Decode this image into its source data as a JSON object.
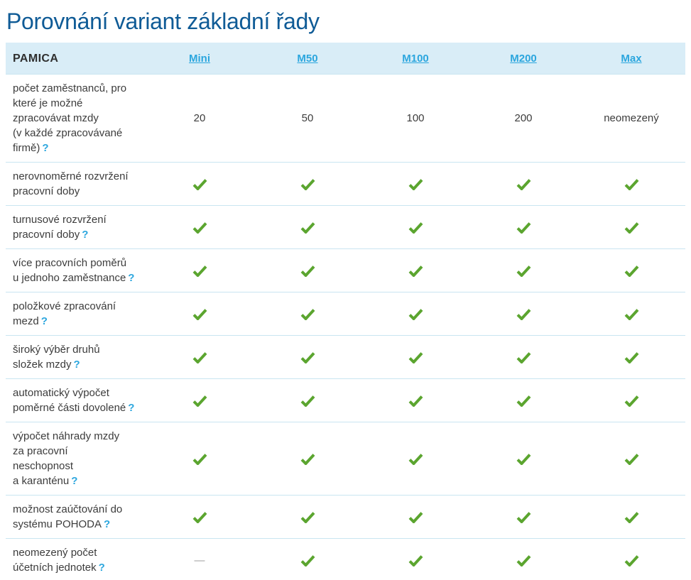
{
  "page": {
    "title": "Porovnání variant základní řady"
  },
  "table": {
    "product": "PAMICA",
    "columns": [
      "Mini",
      "M50",
      "M100",
      "M200",
      "Max"
    ],
    "help_symbol": "?",
    "dash_symbol": "—",
    "rows": [
      {
        "label": "počet zaměstnanců, pro\nkteré je možné\nzpracovávat mzdy\n(v každé zpracovávané\nfirmě)",
        "help": true,
        "values": [
          "20",
          "50",
          "100",
          "200",
          "neomezený"
        ]
      },
      {
        "label": "nerovnoměrné rozvržení\npracovní doby",
        "help": false,
        "values": [
          "check",
          "check",
          "check",
          "check",
          "check"
        ]
      },
      {
        "label": "turnusové rozvržení\npracovní doby",
        "help": true,
        "values": [
          "check",
          "check",
          "check",
          "check",
          "check"
        ]
      },
      {
        "label": "více pracovních poměrů\nu jednoho zaměstnance",
        "help": true,
        "values": [
          "check",
          "check",
          "check",
          "check",
          "check"
        ]
      },
      {
        "label": "položkové zpracování\nmezd",
        "help": true,
        "values": [
          "check",
          "check",
          "check",
          "check",
          "check"
        ]
      },
      {
        "label": "široký výběr druhů\nsložek mzdy",
        "help": true,
        "values": [
          "check",
          "check",
          "check",
          "check",
          "check"
        ]
      },
      {
        "label": "automatický výpočet\npoměrné části dovolené",
        "help": true,
        "values": [
          "check",
          "check",
          "check",
          "check",
          "check"
        ]
      },
      {
        "label": "výpočet náhrady mzdy\nza pracovní\nneschopnost\na karanténu",
        "help": true,
        "values": [
          "check",
          "check",
          "check",
          "check",
          "check"
        ]
      },
      {
        "label": "možnost zaúčtování do\nsystému POHODA",
        "help": true,
        "values": [
          "check",
          "check",
          "check",
          "check",
          "check"
        ]
      },
      {
        "label": "neomezený počet\núčetních jednotek",
        "help": true,
        "values": [
          "dash",
          "check",
          "check",
          "check",
          "check"
        ]
      }
    ]
  },
  "colors": {
    "title": "#0F5B96",
    "link": "#2BA6DE",
    "check": "#5BA52F",
    "header_bg": "#D9EDF7",
    "row_border": "#C9E5F1",
    "text": "#3C3C3C",
    "dash": "#9E9E9E"
  }
}
